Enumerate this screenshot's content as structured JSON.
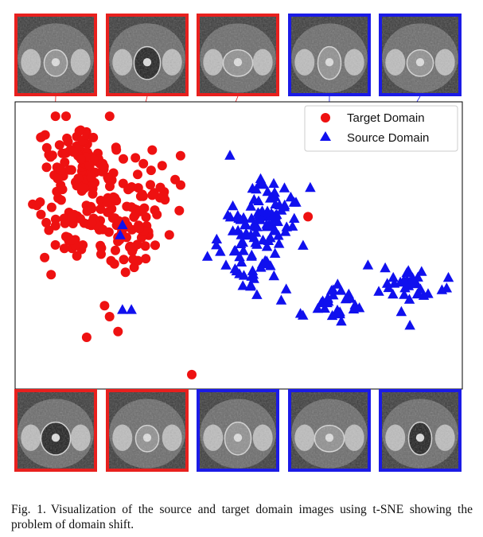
{
  "figure": {
    "caption_label": "Fig. 1.",
    "caption_text": "Visualization of the source and target domain images using t-SNE showing the problem of domain shift.",
    "legend": {
      "target_label": "Target Domain",
      "source_label": "Source Domain"
    },
    "colors": {
      "target": "#ee1111",
      "source": "#1010ee",
      "target_frame": "#e8201e",
      "source_frame": "#1b1be6"
    },
    "thumbnails": [
      {
        "domain": "target",
        "row": "top",
        "slot": 0,
        "link_x": 0.071,
        "link_y": 0.15
      },
      {
        "domain": "target",
        "row": "top",
        "slot": 1,
        "link_x": 0.155,
        "link_y": 0.155
      },
      {
        "domain": "target",
        "row": "top",
        "slot": 2,
        "link_x": 0.29,
        "link_y": 0.225
      },
      {
        "domain": "source",
        "row": "top",
        "slot": 3,
        "link_x": 0.7,
        "link_y": 0.7
      },
      {
        "domain": "source",
        "row": "top",
        "slot": 4,
        "link_x": 0.745,
        "link_y": 0.595
      },
      {
        "domain": "target",
        "row": "bottom",
        "slot": 0,
        "link_x": 0.095,
        "link_y": 0.47
      },
      {
        "domain": "target",
        "row": "bottom",
        "slot": 1,
        "link_x": 0.145,
        "link_y": 0.9
      },
      {
        "domain": "source",
        "row": "bottom",
        "slot": 2,
        "link_x": 0.46,
        "link_y": 0.61
      },
      {
        "domain": "source",
        "row": "bottom",
        "slot": 3,
        "link_x": 0.62,
        "link_y": 0.595
      },
      {
        "domain": "source",
        "row": "bottom",
        "slot": 4,
        "link_x": 0.61,
        "link_y": 0.76
      }
    ]
  },
  "chart_data": {
    "type": "scatter",
    "title": "",
    "xlabel": "",
    "ylabel": "",
    "xlim": [
      0,
      1
    ],
    "ylim": [
      0,
      1
    ],
    "grid": false,
    "ticks": false,
    "legend_position": "top-right",
    "series": [
      {
        "name": "Target Domain",
        "marker": "circle",
        "color": "#ee1111",
        "clusters": [
          {
            "cx": 0.16,
            "cy": 0.78,
            "sx": 0.045,
            "sy": 0.065,
            "n": 95
          },
          {
            "cx": 0.24,
            "cy": 0.56,
            "sx": 0.05,
            "sy": 0.08,
            "n": 95
          },
          {
            "cx": 0.1,
            "cy": 0.6,
            "sx": 0.04,
            "sy": 0.07,
            "n": 35
          },
          {
            "cx": 0.3,
            "cy": 0.72,
            "sx": 0.035,
            "sy": 0.06,
            "n": 18
          }
        ],
        "points": [
          [
            0.395,
            0.05
          ],
          [
            0.655,
            0.6
          ],
          [
            0.23,
            0.2
          ],
          [
            0.16,
            0.18
          ],
          [
            0.2,
            0.29
          ]
        ]
      },
      {
        "name": "Source Domain",
        "marker": "triangle",
        "color": "#1010ee",
        "clusters": [
          {
            "cx": 0.555,
            "cy": 0.6,
            "sx": 0.035,
            "sy": 0.06,
            "n": 80
          },
          {
            "cx": 0.52,
            "cy": 0.45,
            "sx": 0.03,
            "sy": 0.06,
            "n": 35
          },
          {
            "cx": 0.7,
            "cy": 0.3,
            "sx": 0.06,
            "sy": 0.03,
            "n": 30
          },
          {
            "cx": 0.88,
            "cy": 0.35,
            "sx": 0.035,
            "sy": 0.035,
            "n": 32
          }
        ],
        "points": [
          [
            0.24,
            0.57
          ],
          [
            0.235,
            0.535
          ],
          [
            0.26,
            0.275
          ],
          [
            0.24,
            0.275
          ],
          [
            0.66,
            0.7
          ],
          [
            0.965,
            0.35
          ],
          [
            0.45,
            0.5
          ],
          [
            0.43,
            0.46
          ]
        ]
      }
    ]
  }
}
